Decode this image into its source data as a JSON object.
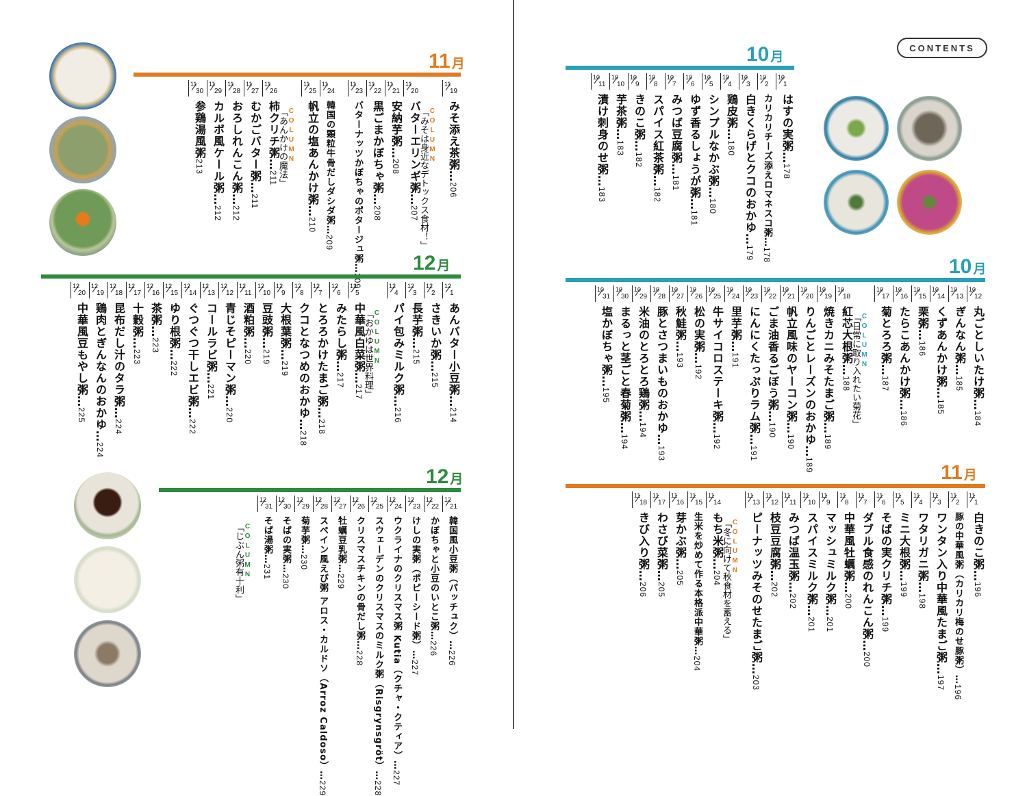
{
  "badge": "CONTENTS",
  "colors": {
    "orange": "#e07b1e",
    "green": "#2d8a3e",
    "teal": "#2aa0b5"
  },
  "sections": {
    "nov_left": {
      "month_num": "11",
      "month_unit": "月",
      "entries": [
        {
          "m": "11",
          "d": "19",
          "title": "みそ添え茶粥…",
          "page": "206"
        },
        {
          "column": true,
          "label": "COLUMN",
          "text": "「みそは身近なデトックス食材！」"
        },
        {
          "m": "11",
          "d": "20",
          "title": "バターエリンギ粥…",
          "page": "207"
        },
        {
          "m": "11",
          "d": "21",
          "title": "安納芋粥…",
          "page": "208"
        },
        {
          "m": "11",
          "d": "22",
          "title": "黒ごまかぼちゃ粥…",
          "page": "208"
        },
        {
          "m": "11",
          "d": "23",
          "title": "バターナッツかぼちゃのポタージュ粥…",
          "page": "209",
          "small": true
        },
        {
          "gap": true
        },
        {
          "m": "11",
          "d": "24",
          "title": "韓国の顆粒牛骨だしダシダ粥…",
          "page": "209",
          "small": true
        },
        {
          "m": "11",
          "d": "25",
          "title": "帆立の塩あんかけ粥…",
          "page": "210"
        },
        {
          "column": true,
          "label": "COLUMN",
          "text": "「あんかけの魔法」"
        },
        {
          "m": "11",
          "d": "26",
          "title": "柿クリチ粥…",
          "page": "211"
        },
        {
          "m": "11",
          "d": "27",
          "title": "むかごバター粥…",
          "page": "211"
        },
        {
          "m": "11",
          "d": "28",
          "title": "おろしれんこん粥…",
          "page": "212"
        },
        {
          "m": "11",
          "d": "29",
          "title": "カルボ風ケール粥…",
          "page": "212"
        },
        {
          "m": "11",
          "d": "30",
          "title": "参鶏湯風粥",
          "page": "213"
        }
      ]
    },
    "dec_left_top": {
      "month_num": "12",
      "month_unit": "月",
      "entries": [
        {
          "m": "12",
          "d": "1",
          "title": "あんバター小豆粥…",
          "page": "214"
        },
        {
          "m": "12",
          "d": "2",
          "title": "さきいか粥…",
          "page": "215"
        },
        {
          "m": "12",
          "d": "3",
          "title": "長芋粥…",
          "page": "215"
        },
        {
          "m": "12",
          "d": "4",
          "title": "パイ包みミルク粥…",
          "page": "216"
        },
        {
          "column": true,
          "label": "COLUMN",
          "text": "「おかゆは世界料理」"
        },
        {
          "m": "12",
          "d": "5",
          "title": "中華風白菜粥…",
          "page": "217"
        },
        {
          "m": "12",
          "d": "6",
          "title": "みたらし粥…",
          "page": "217"
        },
        {
          "m": "12",
          "d": "7",
          "title": "とろろかけたまご粥…",
          "page": "218"
        },
        {
          "m": "12",
          "d": "8",
          "title": "クコとなつめのおかゆ…",
          "page": "218"
        },
        {
          "m": "12",
          "d": "9",
          "title": "大根葉粥…",
          "page": "219"
        },
        {
          "m": "12",
          "d": "10",
          "title": "豆豉粥…",
          "page": "219"
        },
        {
          "m": "12",
          "d": "11",
          "title": "酒粕粥…",
          "page": "220"
        },
        {
          "m": "12",
          "d": "12",
          "title": "青じそピーマン粥…",
          "page": "220"
        },
        {
          "m": "12",
          "d": "13",
          "title": "コールラビ粥…",
          "page": "221"
        },
        {
          "m": "12",
          "d": "14",
          "title": "ぐつぐつ干しエビ粥…",
          "page": "222"
        },
        {
          "m": "12",
          "d": "15",
          "title": "ゆり根粥…",
          "page": "222"
        },
        {
          "m": "12",
          "d": "16",
          "title": "茶粥…",
          "page": "223"
        },
        {
          "m": "12",
          "d": "17",
          "title": "十穀粥…",
          "page": "223"
        },
        {
          "m": "12",
          "d": "18",
          "title": "昆布だし汁のタラ粥…",
          "page": "224"
        },
        {
          "m": "12",
          "d": "19",
          "title": "鶏肉とぎんなんのおかゆ…",
          "page": "224"
        },
        {
          "m": "12",
          "d": "20",
          "title": "中華風豆もやし粥…",
          "page": "225"
        }
      ]
    },
    "dec_left_bottom": {
      "month_num": "12",
      "month_unit": "月",
      "entries": [
        {
          "m": "12",
          "d": "21",
          "title": "韓国風小豆粥（パッチュク）…",
          "page": "226",
          "small": true
        },
        {
          "m": "12",
          "d": "22",
          "title": "かぼちゃと小豆のいとこ粥…",
          "page": "226",
          "small": true
        },
        {
          "m": "12",
          "d": "23",
          "title": "けしの実粥（ポピーシード粥）…",
          "page": "227",
          "small": true
        },
        {
          "m": "12",
          "d": "24",
          "title": "ウクライナのクリスマス粥 Kutia（クチャ・クティア）…",
          "page": "227",
          "small": true
        },
        {
          "m": "12",
          "d": "25",
          "title": "スウェーデンのクリスマスのミルク粥（Risgrynsgröt）…",
          "page": "228",
          "small": true
        },
        {
          "m": "12",
          "d": "26",
          "title": "クリスマスチキンの骨だし粥…",
          "page": "228",
          "small": true
        },
        {
          "m": "12",
          "d": "27",
          "title": "牡蠣豆乳粥…",
          "page": "229",
          "small": true
        },
        {
          "m": "12",
          "d": "28",
          "title": "スペイン風えび粥 アロス・カルドソ（Arroz Caldoso）…",
          "page": "229",
          "small": true
        },
        {
          "m": "12",
          "d": "29",
          "title": "菊芋粥…",
          "page": "230",
          "small": true
        },
        {
          "m": "12",
          "d": "30",
          "title": "そばの実粥…",
          "page": "230",
          "small": true
        },
        {
          "m": "12",
          "d": "31",
          "title": "そば湯粥…",
          "page": "231",
          "small": true
        },
        {
          "column": true,
          "label": "COLUMN",
          "text": "「じぶん粥有十利」"
        }
      ]
    },
    "oct_right_top": {
      "month_num": "10",
      "month_unit": "月",
      "entries": [
        {
          "m": "10",
          "d": "1",
          "title": "はすの実粥…",
          "page": "178"
        },
        {
          "m": "10",
          "d": "2",
          "title": "カリカリチーズ添えロマネスコ粥…",
          "page": "178",
          "small": true
        },
        {
          "m": "10",
          "d": "3",
          "title": "白きくらげとクコのおかゆ…",
          "page": "179"
        },
        {
          "m": "10",
          "d": "4",
          "title": "鶏皮粥…",
          "page": "180"
        },
        {
          "m": "10",
          "d": "5",
          "title": "シンプルなかぶ粥…",
          "page": "180"
        },
        {
          "m": "10",
          "d": "6",
          "title": "ゆず香るしょうが粥…",
          "page": "181"
        },
        {
          "m": "10",
          "d": "7",
          "title": "みつば豆腐粥…",
          "page": "181"
        },
        {
          "m": "10",
          "d": "8",
          "title": "スパイス紅茶粥…",
          "page": "182"
        },
        {
          "m": "10",
          "d": "9",
          "title": "きのこ粥…",
          "page": "182"
        },
        {
          "m": "10",
          "d": "10",
          "title": "芋茶粥…",
          "page": "183"
        },
        {
          "m": "10",
          "d": "11",
          "title": "漬け刺身のせ粥…",
          "page": "183"
        }
      ]
    },
    "oct_right_mid": {
      "month_num": "10",
      "month_unit": "月",
      "entries": [
        {
          "m": "10",
          "d": "12",
          "title": "丸ごとしいたけ粥…",
          "page": "184"
        },
        {
          "m": "10",
          "d": "13",
          "title": "ぎんなん粥…",
          "page": "185"
        },
        {
          "m": "10",
          "d": "14",
          "title": "くずあんかけ粥…",
          "page": "185"
        },
        {
          "m": "10",
          "d": "15",
          "title": "栗粥…",
          "page": "186"
        },
        {
          "m": "10",
          "d": "16",
          "title": "たらこあんかけ粥…",
          "page": "186"
        },
        {
          "m": "10",
          "d": "17",
          "title": "菊とろろ粥…",
          "page": "187"
        },
        {
          "column": true,
          "label": "COLUMN",
          "text": "「日常に取り入れたい菊花」"
        },
        {
          "m": "10",
          "d": "18",
          "title": "紅芯大根粥…",
          "page": "188"
        },
        {
          "m": "10",
          "d": "19",
          "title": "焼きカニみそたまご粥…",
          "page": "189"
        },
        {
          "m": "10",
          "d": "20",
          "title": "りんごとレーズンのおかゆ…",
          "page": "189"
        },
        {
          "m": "10",
          "d": "21",
          "title": "帆立風味のヤーコン粥…",
          "page": "190"
        },
        {
          "m": "10",
          "d": "22",
          "title": "ごま油香るごぼう粥…",
          "page": "190"
        },
        {
          "m": "10",
          "d": "23",
          "title": "にんにくたっぷりラム粥…",
          "page": "191"
        },
        {
          "m": "10",
          "d": "24",
          "title": "里芋粥…",
          "page": "191"
        },
        {
          "m": "10",
          "d": "25",
          "title": "牛サイコロステーキ粥…",
          "page": "192"
        },
        {
          "m": "10",
          "d": "26",
          "title": "松の実粥…",
          "page": "192"
        },
        {
          "m": "10",
          "d": "27",
          "title": "秋鮭粥…",
          "page": "193"
        },
        {
          "m": "10",
          "d": "28",
          "title": "豚とさつまいものおかゆ…",
          "page": "193"
        },
        {
          "m": "10",
          "d": "29",
          "title": "米油のとろとろ鶏粥…",
          "page": "194"
        },
        {
          "m": "10",
          "d": "30",
          "title": "まるっと茎ごと春菊粥…",
          "page": "194"
        },
        {
          "m": "10",
          "d": "31",
          "title": "塩かぼちゃ粥…",
          "page": "195"
        }
      ]
    },
    "nov_right_bottom": {
      "month_num": "11",
      "month_unit": "月",
      "entries": [
        {
          "m": "11",
          "d": "1",
          "title": "白きのこ粥…",
          "page": "196"
        },
        {
          "m": "11",
          "d": "2",
          "title": "豚の中華風粥（カリカリ梅のせ豚粥）…",
          "page": "196",
          "small": true
        },
        {
          "m": "11",
          "d": "3",
          "title": "ワンタン入り中華風たまご粥…",
          "page": "197"
        },
        {
          "m": "11",
          "d": "4",
          "title": "ワタリガニ粥…",
          "page": "198"
        },
        {
          "m": "11",
          "d": "5",
          "title": "ミニ大根粥…",
          "page": "199"
        },
        {
          "m": "11",
          "d": "6",
          "title": "そばの実クリチ粥…",
          "page": "199"
        },
        {
          "m": "11",
          "d": "7",
          "title": "ダブル食感のれんこん粥…",
          "page": "200"
        },
        {
          "m": "11",
          "d": "8",
          "title": "中華風牡蠣粥…",
          "page": "200"
        },
        {
          "m": "11",
          "d": "9",
          "title": "マッシュミルク粥…",
          "page": "201"
        },
        {
          "m": "11",
          "d": "10",
          "title": "スパイスミルク粥…",
          "page": "201"
        },
        {
          "m": "11",
          "d": "11",
          "title": "みつば温玉粥…",
          "page": "202"
        },
        {
          "m": "11",
          "d": "12",
          "title": "枝豆豆腐粥…",
          "page": "202"
        },
        {
          "m": "11",
          "d": "13",
          "title": "ピーナッツみそのせたまご粥…",
          "page": "203"
        },
        {
          "column": true,
          "label": "COLUMN",
          "text": "「冬に向けて秋食材を蓄える」"
        },
        {
          "m": "11",
          "d": "14",
          "title": "もち米粥…",
          "page": "204"
        },
        {
          "m": "11",
          "d": "15",
          "title": "生米を炒めて作る本格派中華粥…",
          "page": "204",
          "small": true
        },
        {
          "m": "11",
          "d": "16",
          "title": "芽かぶ粥…",
          "page": "205"
        },
        {
          "m": "11",
          "d": "17",
          "title": "わさび菜粥…",
          "page": "205"
        },
        {
          "m": "11",
          "d": "18",
          "title": "きび入り粥…",
          "page": "206"
        }
      ]
    }
  }
}
